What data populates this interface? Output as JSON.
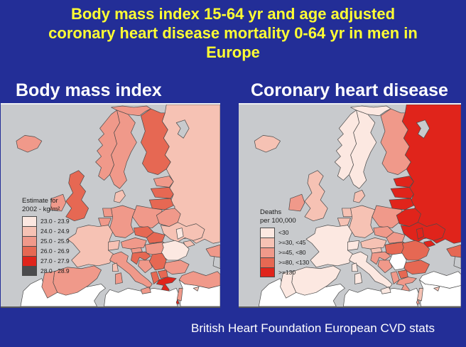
{
  "title": {
    "lines": [
      "Body mass index 15-64 yr and age adjusted",
      "coronary heart disease mortality 0-64 yr in men in",
      "Europe"
    ]
  },
  "caption": "British Heart Foundation European CVD stats",
  "colors": {
    "background": "#232e97",
    "title_text": "#ffff33",
    "header_text": "#ffffff",
    "sea": "#c8cacd",
    "country_border": "#4a4a4a",
    "no_data": "#ffffff",
    "palette": {
      "p1": "#fce8e1",
      "p2": "#f6c2b4",
      "p3": "#f0998a",
      "p4": "#e66853",
      "p5": "#e0241b",
      "p6": "#4b4b4d"
    }
  },
  "panels": [
    {
      "key": "bmi",
      "header": "Body mass index",
      "legend": {
        "title_line1": "Estimate for",
        "title_line2": "2002 - kg/m²",
        "items": [
          {
            "color": "p1",
            "label": "23.0 - 23.9"
          },
          {
            "color": "p2",
            "label": "24.0 - 24.9"
          },
          {
            "color": "p3",
            "label": "25.0 - 25.9"
          },
          {
            "color": "p4",
            "label": "26.0 - 26.9"
          },
          {
            "color": "p5",
            "label": "27.0 - 27.9"
          },
          {
            "color": "p6",
            "label": "28.0 - 28.9"
          }
        ]
      }
    },
    {
      "key": "chd",
      "header": "Coronary heart disease",
      "legend": {
        "title_line1": "Deaths",
        "title_line2": "per 100,000",
        "items": [
          {
            "color": "p1",
            "label": "<30"
          },
          {
            "color": "p2",
            "label": ">=30, <45"
          },
          {
            "color": "p3",
            "label": ">=45, <80"
          },
          {
            "color": "p4",
            "label": ">=80, <130"
          },
          {
            "color": "p5",
            "label": ">=130"
          }
        ]
      }
    }
  ],
  "maps": {
    "bmi": {
      "russia": "p2",
      "finland": "p4",
      "sweden": "p3",
      "norway": "p3",
      "denmark": "p2",
      "estonia": "p3",
      "latvia": "p4",
      "lithuania": "p4",
      "poland": "p3",
      "belarus": "p3",
      "ukraine": "p2",
      "moldova": "p1",
      "germany": "p3",
      "netherlands": "p3",
      "belgium": "p3",
      "czech": "p4",
      "slovakia": "p4",
      "austria": "p3",
      "hungary": "p3",
      "france": "p2",
      "switzerland": "p2",
      "romania": "p1",
      "bulgaria": "p3",
      "slovenia": "p3",
      "croatia": "p4",
      "bosnia": "p3",
      "serbia": "p4",
      "albania": "p4",
      "macedonia": "p4",
      "greece": "p5",
      "africa_w": "w",
      "africa_e": "w",
      "mideast": "w",
      "turkey": "p3",
      "caucasus": "p3",
      "israel": "p3",
      "cyprus": "p2",
      "italy": "p3",
      "corsica": "p2",
      "sardinia": "p3",
      "spain": "p3",
      "portugal": "p3",
      "uk": "p4",
      "ireland": "p3",
      "iceland": "p3"
    },
    "chd": {
      "russia": "p5",
      "finland": "p3",
      "sweden": "p1",
      "norway": "p1",
      "denmark": "p2",
      "estonia": "p5",
      "latvia": "p5",
      "lithuania": "p5",
      "poland": "p3",
      "belarus": "p5",
      "ukraine": "p5",
      "moldova": "p5",
      "germany": "p2",
      "netherlands": "p2",
      "belgium": "p2",
      "czech": "p3",
      "slovakia": "p3",
      "austria": "p2",
      "hungary": "p4",
      "france": "p1",
      "switzerland": "p1",
      "romania": "p4",
      "bulgaria": "p4",
      "slovenia": "p2",
      "croatia": "p3",
      "bosnia": "p3",
      "serbia": "w",
      "albania": "p3",
      "macedonia": "p4",
      "greece": "p3",
      "africa_w": "w",
      "africa_e": "w",
      "mideast": "w",
      "turkey": "w",
      "caucasus": "p4",
      "israel": "p2",
      "cyprus": "p2",
      "italy": "p1",
      "corsica": "p1",
      "sardinia": "p1",
      "spain": "p1",
      "portugal": "p1",
      "uk": "p2",
      "ireland": "p3",
      "iceland": "p2"
    }
  }
}
